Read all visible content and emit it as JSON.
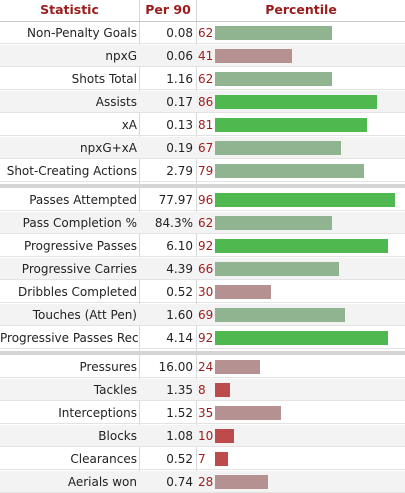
{
  "header": {
    "statistic": "Statistic",
    "per90": "Per 90",
    "percentile": "Percentile"
  },
  "colors": {
    "elite": "#4fb84f",
    "above_avg": "#8fb48f",
    "below_avg": "#b59191",
    "poor": "#bd4b4b"
  },
  "chart_data": {
    "type": "bar",
    "xlim": [
      0,
      100
    ],
    "sections": [
      {
        "rows": [
          {
            "label": "Non-Penalty Goals",
            "per90": "0.08",
            "percentile": 62
          },
          {
            "label": "npxG",
            "per90": "0.06",
            "percentile": 41
          },
          {
            "label": "Shots Total",
            "per90": "1.16",
            "percentile": 62
          },
          {
            "label": "Assists",
            "per90": "0.17",
            "percentile": 86
          },
          {
            "label": "xA",
            "per90": "0.13",
            "percentile": 81
          },
          {
            "label": "npxG+xA",
            "per90": "0.19",
            "percentile": 67
          },
          {
            "label": "Shot-Creating Actions",
            "per90": "2.79",
            "percentile": 79
          }
        ]
      },
      {
        "rows": [
          {
            "label": "Passes Attempted",
            "per90": "77.97",
            "percentile": 96
          },
          {
            "label": "Pass Completion %",
            "per90": "84.3%",
            "percentile": 62
          },
          {
            "label": "Progressive Passes",
            "per90": "6.10",
            "percentile": 92
          },
          {
            "label": "Progressive Carries",
            "per90": "4.39",
            "percentile": 66
          },
          {
            "label": "Dribbles Completed",
            "per90": "0.52",
            "percentile": 30
          },
          {
            "label": "Touches (Att Pen)",
            "per90": "1.60",
            "percentile": 69
          },
          {
            "label": "Progressive Passes Rec",
            "per90": "4.14",
            "percentile": 92
          }
        ]
      },
      {
        "rows": [
          {
            "label": "Pressures",
            "per90": "16.00",
            "percentile": 24
          },
          {
            "label": "Tackles",
            "per90": "1.35",
            "percentile": 8
          },
          {
            "label": "Interceptions",
            "per90": "1.52",
            "percentile": 35
          },
          {
            "label": "Blocks",
            "per90": "1.08",
            "percentile": 10
          },
          {
            "label": "Clearances",
            "per90": "0.52",
            "percentile": 7
          },
          {
            "label": "Aerials won",
            "per90": "0.74",
            "percentile": 28
          }
        ]
      }
    ]
  }
}
